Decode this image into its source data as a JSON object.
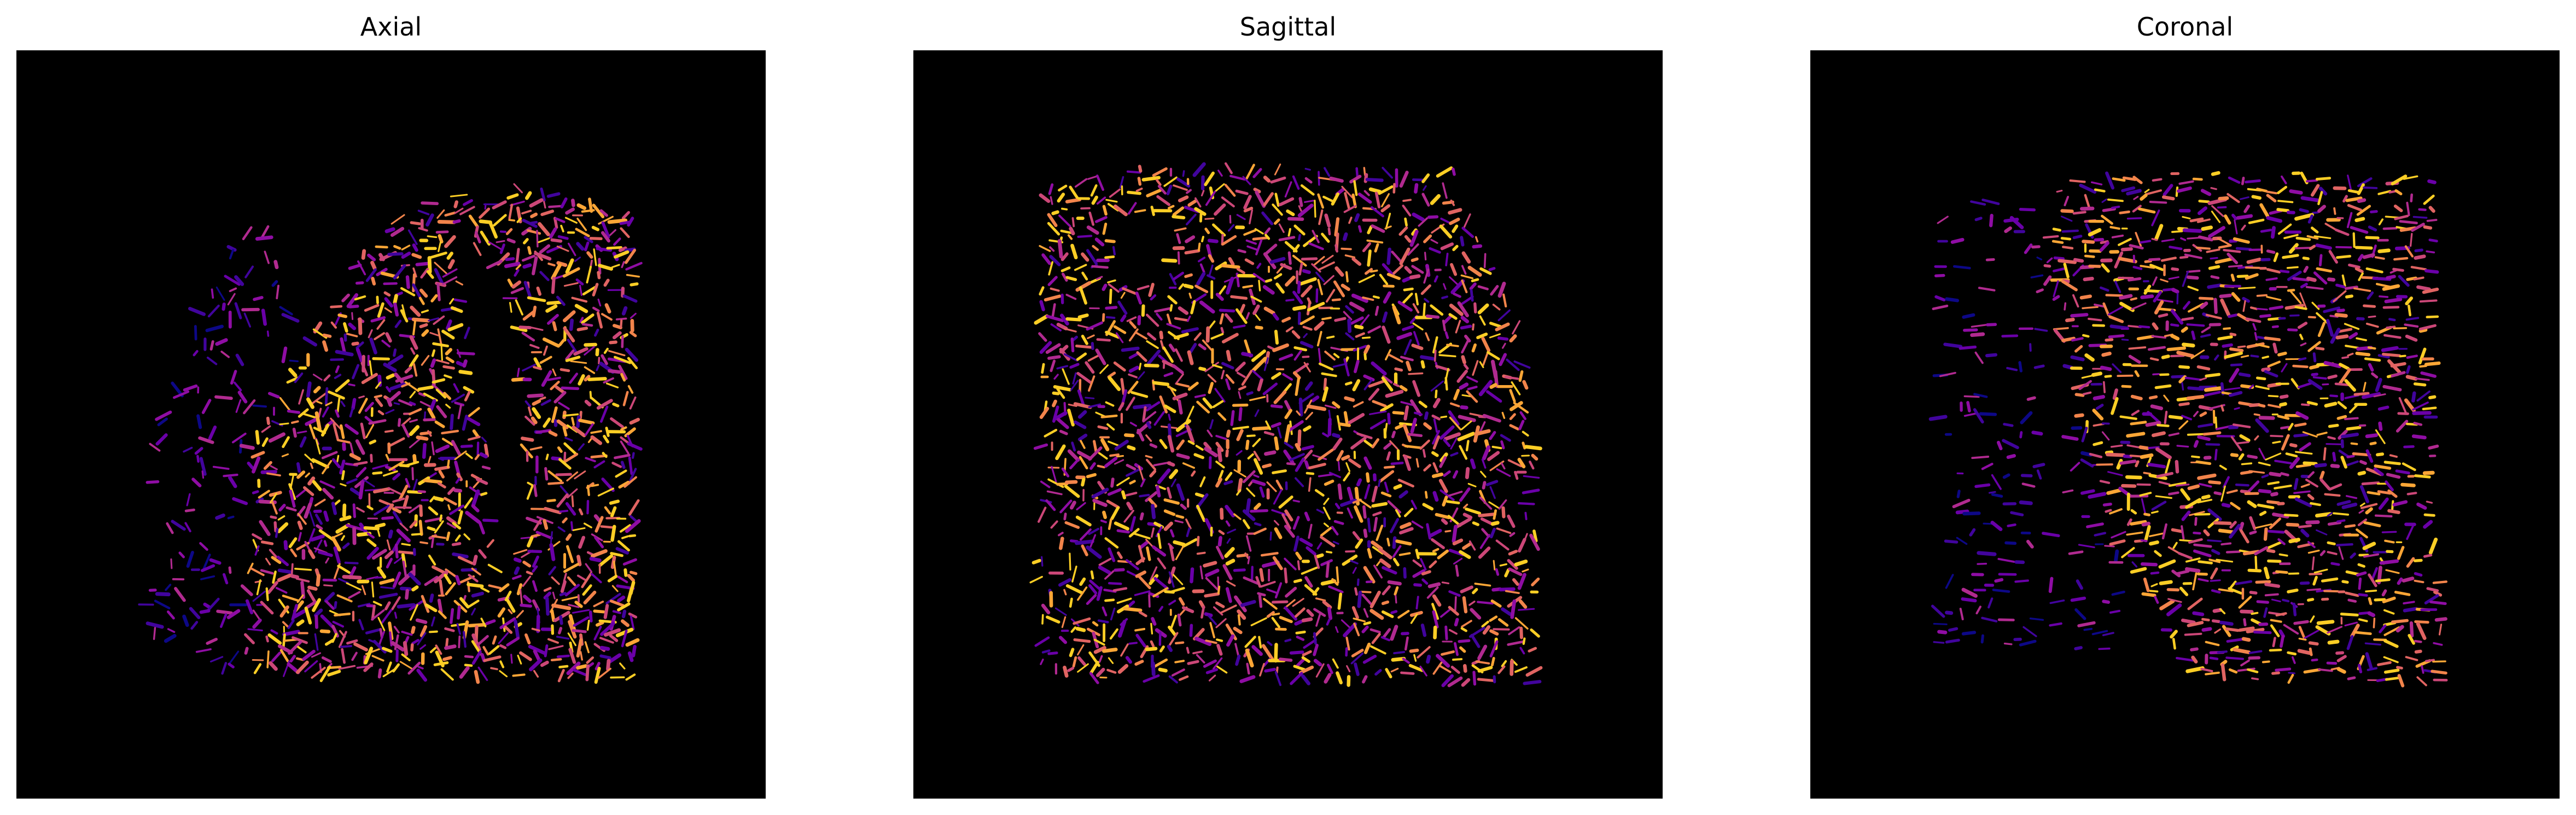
{
  "figure": {
    "colormap": "plasma",
    "background_color": "#000000",
    "panels": [
      {
        "id": "axial",
        "title": "Axial"
      },
      {
        "id": "sagittal",
        "title": "Sagittal"
      },
      {
        "id": "coronal",
        "title": "Coronal"
      }
    ]
  }
}
